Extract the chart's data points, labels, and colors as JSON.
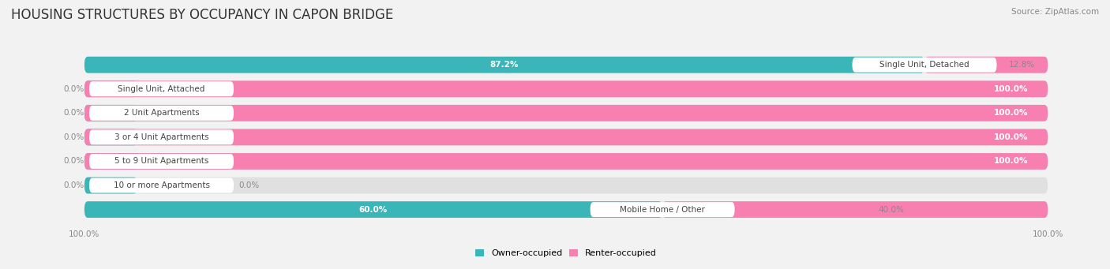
{
  "title": "HOUSING STRUCTURES BY OCCUPANCY IN CAPON BRIDGE",
  "source": "Source: ZipAtlas.com",
  "categories": [
    "Single Unit, Detached",
    "Single Unit, Attached",
    "2 Unit Apartments",
    "3 or 4 Unit Apartments",
    "5 to 9 Unit Apartments",
    "10 or more Apartments",
    "Mobile Home / Other"
  ],
  "owner_pct": [
    87.2,
    0.0,
    0.0,
    0.0,
    0.0,
    0.0,
    60.0
  ],
  "renter_pct": [
    12.8,
    100.0,
    100.0,
    100.0,
    100.0,
    0.0,
    40.0
  ],
  "owner_color": "#3ab5b8",
  "renter_color": "#f780b0",
  "bg_color": "#f2f2f2",
  "bar_bg_color": "#e0e0e0",
  "title_fontsize": 12,
  "label_fontsize": 7.5,
  "tick_fontsize": 7.5,
  "source_fontsize": 7.5,
  "legend_fontsize": 8
}
